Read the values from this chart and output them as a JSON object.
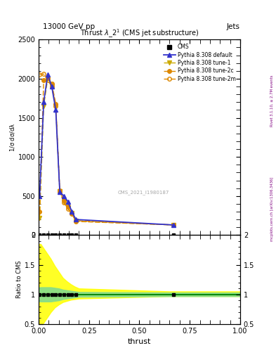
{
  "title": "Thrust $\\lambda\\_2^1$ (CMS jet substructure)",
  "top_left_label": "13000 GeV pp",
  "top_right_label": "Jets",
  "right_label_top": "Rivet 3.1.10, ≥ 2.7M events",
  "right_label_bottom": "mcplots.cern.ch [arXiv:1306.3436]",
  "watermark": "CMS_2021_I1980187",
  "xlabel": "thrust",
  "cms_x": [
    0.005,
    0.025,
    0.045,
    0.065,
    0.085,
    0.105,
    0.125,
    0.145,
    0.165,
    0.185,
    0.67
  ],
  "cms_y": [
    0,
    0,
    0,
    0,
    0,
    0,
    0,
    0,
    0,
    0,
    0
  ],
  "pythia_x": [
    0.005,
    0.025,
    0.045,
    0.065,
    0.085,
    0.105,
    0.125,
    0.145,
    0.165,
    0.185,
    0.67
  ],
  "default_y": [
    500,
    1700,
    2050,
    1900,
    1600,
    550,
    500,
    430,
    300,
    200,
    130
  ],
  "tune1_y": [
    220,
    1650,
    2000,
    1900,
    1650,
    560,
    430,
    350,
    280,
    180,
    130
  ],
  "tune2c_y": [
    300,
    1980,
    2010,
    1940,
    1680,
    570,
    440,
    360,
    285,
    185,
    130
  ],
  "tune2m_y": [
    2050,
    2060,
    1980,
    1900,
    1650,
    550,
    420,
    340,
    270,
    175,
    130
  ],
  "ylim_main": [
    0,
    2500
  ],
  "ylim_ratio": [
    0.5,
    2.0
  ],
  "color_default": "#3333cc",
  "color_tune1": "#ccaa00",
  "color_tune2c": "#dd8800",
  "color_tune2m": "#dd8800",
  "color_cms": "#000000",
  "band_x": [
    0.0,
    0.01,
    0.02,
    0.04,
    0.06,
    0.08,
    0.1,
    0.12,
    0.14,
    0.16,
    0.18,
    0.2,
    0.65,
    0.7,
    1.0
  ],
  "band_green_lo": [
    0.88,
    0.88,
    0.88,
    0.88,
    0.88,
    0.89,
    0.9,
    0.92,
    0.93,
    0.94,
    0.95,
    0.96,
    0.97,
    0.97,
    0.97
  ],
  "band_green_hi": [
    1.12,
    1.12,
    1.12,
    1.12,
    1.12,
    1.11,
    1.1,
    1.08,
    1.07,
    1.06,
    1.05,
    1.04,
    1.03,
    1.03,
    1.03
  ],
  "band_yellow_lo": [
    0.45,
    0.45,
    0.5,
    0.6,
    0.7,
    0.78,
    0.83,
    0.87,
    0.89,
    0.91,
    0.92,
    0.93,
    0.97,
    0.97,
    0.97
  ],
  "band_yellow_hi": [
    1.85,
    1.85,
    1.8,
    1.7,
    1.6,
    1.48,
    1.38,
    1.28,
    1.22,
    1.17,
    1.13,
    1.1,
    1.05,
    1.05,
    1.05
  ]
}
